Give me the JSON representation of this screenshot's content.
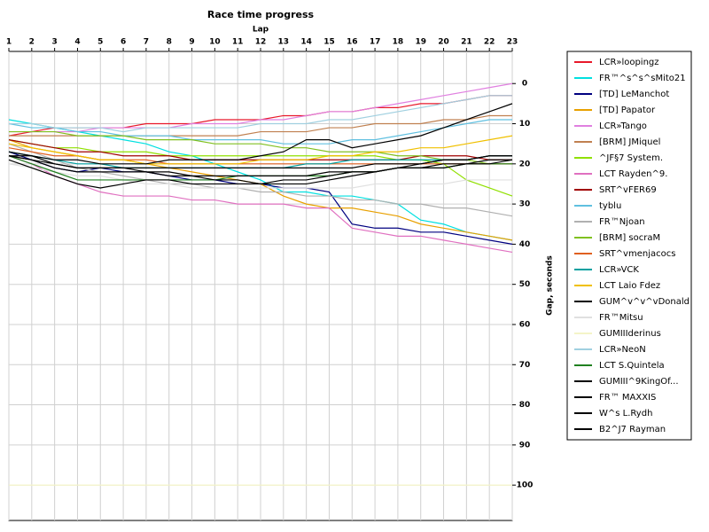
{
  "chart_data": {
    "type": "line",
    "title": "Race time progress",
    "x_label": "Lap",
    "y_label": "Gap, seconds",
    "x": [
      1,
      2,
      3,
      4,
      5,
      6,
      7,
      8,
      9,
      10,
      11,
      12,
      13,
      14,
      15,
      16,
      17,
      18,
      19,
      20,
      21,
      22,
      23
    ],
    "xlim": [
      1,
      23
    ],
    "xticks": [
      1,
      2,
      3,
      4,
      5,
      6,
      7,
      8,
      9,
      10,
      11,
      12,
      13,
      14,
      15,
      16,
      17,
      18,
      19,
      20,
      21,
      22,
      23
    ],
    "ylim": [
      -8,
      108.8
    ],
    "yticks": [
      0,
      10,
      20,
      30,
      40,
      50,
      60,
      70,
      80,
      90,
      100
    ],
    "y_reversed": true,
    "grid": true,
    "series": [
      {
        "name": "LCR»loopingz",
        "color": "#e8182a",
        "values": [
          13,
          12,
          11,
          11,
          11,
          11,
          10,
          10,
          10,
          9,
          9,
          9,
          8,
          8,
          7,
          7,
          6,
          6,
          5,
          5,
          4,
          3,
          3
        ]
      },
      {
        "name": "FR™^s^s^sMito21",
        "color": "#00e0e0",
        "values": [
          9,
          10,
          11,
          12,
          13,
          14,
          15,
          17,
          18,
          20,
          22,
          24,
          27,
          27,
          28,
          28,
          29,
          30,
          34,
          35,
          37,
          38,
          39
        ]
      },
      {
        "name": "[TD] LeManchot",
        "color": "#000080",
        "values": [
          17,
          19,
          21,
          22,
          21,
          22,
          22,
          23,
          24,
          24,
          25,
          25,
          26,
          26,
          27,
          35,
          36,
          36,
          37,
          37,
          38,
          39,
          40
        ]
      },
      {
        "name": "[TD] Papator",
        "color": "#e8a000",
        "values": [
          14,
          16,
          17,
          18,
          19,
          19,
          20,
          21,
          22,
          23,
          24,
          25,
          28,
          30,
          31,
          31,
          32,
          33,
          35,
          36,
          37,
          38,
          39
        ]
      },
      {
        "name": "LCR»Tango",
        "color": "#e080e0",
        "values": [
          12,
          12,
          12,
          12,
          11,
          11,
          11,
          11,
          10,
          10,
          10,
          9,
          9,
          8,
          7,
          7,
          6,
          5,
          4,
          3,
          2,
          1,
          0
        ]
      },
      {
        "name": "[BRM] JMiquel",
        "color": "#c08050",
        "values": [
          13,
          13,
          13,
          13,
          13,
          13,
          13,
          13,
          13,
          13,
          13,
          12,
          12,
          12,
          11,
          11,
          10,
          10,
          10,
          9,
          9,
          8,
          8
        ]
      },
      {
        "name": "^JF§7 System.",
        "color": "#90e000",
        "values": [
          14,
          15,
          16,
          16,
          17,
          17,
          17,
          18,
          18,
          18,
          18,
          18,
          18,
          18,
          18,
          18,
          18,
          19,
          19,
          20,
          24,
          26,
          28
        ]
      },
      {
        "name": "LCT Rayden^9.",
        "color": "#e070c0",
        "values": [
          18,
          20,
          23,
          25,
          27,
          28,
          28,
          28,
          29,
          29,
          30,
          30,
          30,
          31,
          31,
          36,
          37,
          38,
          38,
          39,
          40,
          41,
          42
        ]
      },
      {
        "name": "SRT^vFER69",
        "color": "#a00000",
        "values": [
          14,
          15,
          16,
          17,
          17,
          18,
          18,
          18,
          19,
          19,
          19,
          19,
          19,
          19,
          19,
          19,
          19,
          19,
          18,
          18,
          18,
          19,
          19
        ]
      },
      {
        "name": "tyblu",
        "color": "#60c0e0",
        "values": [
          10,
          11,
          11,
          12,
          12,
          13,
          13,
          13,
          14,
          14,
          14,
          14,
          15,
          15,
          15,
          14,
          14,
          13,
          12,
          11,
          10,
          9,
          9
        ]
      },
      {
        "name": "FR™Njoan",
        "color": "#b0b0b0",
        "values": [
          15,
          17,
          19,
          21,
          22,
          23,
          24,
          25,
          25,
          26,
          26,
          27,
          27,
          28,
          28,
          29,
          29,
          30,
          30,
          31,
          31,
          32,
          33
        ]
      },
      {
        "name": "[BRM] socraM",
        "color": "#80c020",
        "values": [
          12,
          12,
          12,
          13,
          13,
          13,
          14,
          14,
          14,
          15,
          15,
          15,
          16,
          16,
          17,
          17,
          17,
          18,
          18,
          19,
          19,
          20,
          20
        ]
      },
      {
        "name": "SRT^vmenjacocs",
        "color": "#e06020",
        "values": [
          16,
          17,
          18,
          18,
          19,
          19,
          19,
          20,
          20,
          20,
          20,
          20,
          20,
          20,
          20,
          20,
          20,
          20,
          20,
          20,
          20,
          20,
          20
        ]
      },
      {
        "name": "LCR»VCK",
        "color": "#00a0a0",
        "values": [
          17,
          18,
          19,
          20,
          20,
          21,
          21,
          21,
          21,
          21,
          21,
          21,
          21,
          20,
          20,
          19,
          19,
          19,
          19,
          19,
          19,
          18,
          18
        ]
      },
      {
        "name": "LCT Laio Fdez",
        "color": "#f0c000",
        "values": [
          15,
          16,
          17,
          18,
          19,
          19,
          20,
          20,
          20,
          20,
          20,
          19,
          19,
          19,
          18,
          18,
          17,
          17,
          16,
          16,
          15,
          14,
          13
        ]
      },
      {
        "name": "GUM^v^v^vDonald",
        "color": "#000000",
        "values": [
          18,
          18,
          19,
          19,
          20,
          20,
          20,
          19,
          19,
          19,
          19,
          18,
          17,
          14,
          14,
          16,
          15,
          14,
          13,
          11,
          9,
          7,
          5
        ]
      },
      {
        "name": "FR™Mitsu",
        "color": "#e0e0e0",
        "values": [
          20,
          21,
          22,
          23,
          23,
          24,
          25,
          25,
          26,
          26,
          26,
          26,
          26,
          26,
          26,
          26,
          25,
          25,
          25,
          25,
          24,
          24,
          24
        ]
      },
      {
        "name": "GUMIIIderinus",
        "color": "#f4f4c8",
        "values": [
          100,
          100,
          100,
          100,
          100,
          100,
          100,
          100,
          100,
          100,
          100,
          100,
          100,
          100,
          100,
          100,
          100,
          100,
          100,
          100,
          100,
          100,
          100
        ]
      },
      {
        "name": "LCR»NeoN",
        "color": "#a0d0e0",
        "values": [
          10,
          10,
          11,
          11,
          11,
          12,
          11,
          11,
          11,
          11,
          11,
          10,
          10,
          10,
          9,
          9,
          8,
          7,
          6,
          5,
          4,
          3,
          3
        ]
      },
      {
        "name": "LCT S.Quintela",
        "color": "#208020",
        "values": [
          18,
          20,
          22,
          24,
          24,
          24,
          24,
          24,
          24,
          24,
          23,
          23,
          23,
          23,
          23,
          22,
          22,
          21,
          21,
          21,
          20,
          20,
          20
        ]
      },
      {
        "name": "GUMIII^9KingOf...",
        "color": "#000000",
        "values": [
          19,
          21,
          23,
          25,
          26,
          25,
          24,
          24,
          25,
          25,
          25,
          25,
          24,
          24,
          23,
          22,
          22,
          21,
          21,
          21,
          20,
          20,
          19
        ]
      },
      {
        "name": "FR™ MAXXIS",
        "color": "#000000",
        "values": [
          17,
          18,
          20,
          21,
          21,
          21,
          21,
          21,
          21,
          21,
          21,
          21,
          21,
          21,
          21,
          21,
          20,
          20,
          20,
          19,
          19,
          18,
          18
        ]
      },
      {
        "name": "W^s L.Rydh",
        "color": "#000000",
        "values": [
          18,
          19,
          20,
          21,
          21,
          21,
          22,
          22,
          23,
          24,
          24,
          25,
          25,
          25,
          24,
          23,
          22,
          21,
          20,
          19,
          19,
          18,
          18
        ]
      },
      {
        "name": "B2^J7 Rayman",
        "color": "#000000",
        "values": [
          18,
          19,
          21,
          22,
          22,
          22,
          22,
          23,
          23,
          23,
          23,
          23,
          23,
          23,
          22,
          22,
          22,
          21,
          21,
          20,
          20,
          19,
          19
        ]
      }
    ]
  }
}
